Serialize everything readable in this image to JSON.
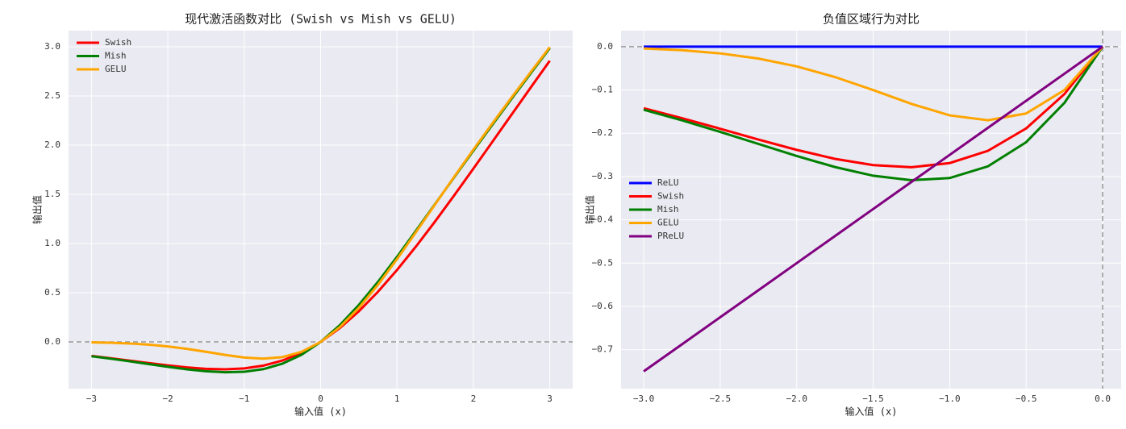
{
  "chart_data": [
    {
      "type": "line",
      "title": "现代激活函数对比 (Swish vs Mish vs GELU)",
      "xlabel": "输入值 (x)",
      "ylabel": "输出值",
      "x": [
        -3,
        -2.75,
        -2.5,
        -2.25,
        -2,
        -1.75,
        -1.5,
        -1.25,
        -1,
        -0.75,
        -0.5,
        -0.25,
        0,
        0.25,
        0.5,
        0.75,
        1,
        1.25,
        1.5,
        1.75,
        2,
        2.25,
        2.5,
        2.75,
        3
      ],
      "series": [
        {
          "name": "Swish",
          "color": "#ff0000",
          "values": [
            -0.1423,
            -0.1652,
            -0.1896,
            -0.2145,
            -0.2384,
            -0.2591,
            -0.2736,
            -0.2784,
            -0.2689,
            -0.2406,
            -0.1888,
            -0.1095,
            0,
            0.1405,
            0.3112,
            0.5094,
            0.7311,
            0.9716,
            1.2264,
            1.4909,
            1.7616,
            2.0355,
            2.3104,
            2.5848,
            2.8577
          ]
        },
        {
          "name": "Mish",
          "color": "#008000",
          "values": [
            -0.1457,
            -0.1702,
            -0.1968,
            -0.2247,
            -0.2525,
            -0.278,
            -0.2981,
            -0.3084,
            -0.3034,
            -0.2765,
            -0.2207,
            -0.1299,
            0,
            0.1696,
            0.3753,
            0.61,
            0.8651,
            1.1319,
            1.4034,
            1.6749,
            1.944,
            2.2095,
            2.4714,
            2.7302,
            2.9865
          ]
        },
        {
          "name": "GELU",
          "color": "#ffa500",
          "values": [
            -0.0041,
            -0.0082,
            -0.0155,
            -0.0275,
            -0.0455,
            -0.0701,
            -0.1002,
            -0.1321,
            -0.1587,
            -0.17,
            -0.1543,
            -0.1003,
            0,
            0.1497,
            0.3457,
            0.58,
            0.8413,
            1.1179,
            1.3998,
            1.6799,
            1.9545,
            2.2225,
            2.4845,
            2.7418,
            2.996
          ]
        }
      ],
      "xlim": [
        -3.3,
        3.3
      ],
      "ylim": [
        -0.475,
        3.164
      ],
      "xticks": [
        {
          "value": -3,
          "label": "−3"
        },
        {
          "value": -2,
          "label": "−2"
        },
        {
          "value": -1,
          "label": "−1"
        },
        0,
        1,
        2,
        3
      ],
      "yticks": [
        {
          "value": 0,
          "label": "0.0"
        },
        0.5,
        {
          "value": 1,
          "label": "1.0"
        },
        1.5,
        {
          "value": 2,
          "label": "2.0"
        },
        2.5,
        {
          "value": 3,
          "label": "3.0"
        }
      ],
      "hlines": [
        0
      ],
      "vlines": [],
      "grid": true,
      "legend": "upper left"
    },
    {
      "type": "line",
      "title": "负值区域行为对比",
      "xlabel": "输入值 (x)",
      "ylabel": "输出值",
      "x": [
        -3,
        -2.75,
        -2.5,
        -2.25,
        -2,
        -1.75,
        -1.5,
        -1.25,
        -1,
        -0.75,
        -0.5,
        -0.25,
        0
      ],
      "series": [
        {
          "name": "ReLU",
          "color": "#0000ff",
          "values": [
            0,
            0,
            0,
            0,
            0,
            0,
            0,
            0,
            0,
            0,
            0,
            0,
            0
          ]
        },
        {
          "name": "Swish",
          "color": "#ff0000",
          "values": [
            -0.1423,
            -0.1652,
            -0.1896,
            -0.2145,
            -0.2384,
            -0.2591,
            -0.2736,
            -0.2784,
            -0.2689,
            -0.2406,
            -0.1888,
            -0.1095,
            0
          ]
        },
        {
          "name": "Mish",
          "color": "#008000",
          "values": [
            -0.1457,
            -0.1702,
            -0.1968,
            -0.2247,
            -0.2525,
            -0.278,
            -0.2981,
            -0.3084,
            -0.3034,
            -0.2765,
            -0.2207,
            -0.1299,
            0
          ]
        },
        {
          "name": "GELU",
          "color": "#ffa500",
          "values": [
            -0.0041,
            -0.0082,
            -0.0155,
            -0.0275,
            -0.0455,
            -0.0701,
            -0.1002,
            -0.1321,
            -0.1587,
            -0.17,
            -0.1543,
            -0.1003,
            0
          ]
        },
        {
          "name": "PReLU",
          "color": "#800080",
          "values": [
            -0.75,
            -0.6875,
            -0.625,
            -0.5625,
            -0.5,
            -0.4375,
            -0.375,
            -0.3125,
            -0.25,
            -0.1875,
            -0.125,
            -0.0625,
            0
          ]
        }
      ],
      "xlim": [
        -3.148,
        0.121
      ],
      "ylim": [
        -0.79,
        0.037
      ],
      "xticks": [
        {
          "value": -3,
          "label": "−3.0"
        },
        {
          "value": -2.5,
          "label": "−2.5"
        },
        {
          "value": -2,
          "label": "−2.0"
        },
        {
          "value": -1.5,
          "label": "−1.5"
        },
        {
          "value": -1,
          "label": "−1.0"
        },
        {
          "value": -0.5,
          "label": "−0.5"
        },
        {
          "value": 0,
          "label": "0.0"
        }
      ],
      "yticks": [
        {
          "value": 0,
          "label": "0.0"
        },
        {
          "value": -0.1,
          "label": "−0.1"
        },
        {
          "value": -0.2,
          "label": "−0.2"
        },
        {
          "value": -0.3,
          "label": "−0.3"
        },
        {
          "value": -0.4,
          "label": "−0.4"
        },
        {
          "value": -0.5,
          "label": "−0.5"
        },
        {
          "value": -0.6,
          "label": "−0.6"
        },
        {
          "value": -0.7,
          "label": "−0.7"
        }
      ],
      "hlines": [
        0
      ],
      "vlines": [
        0
      ],
      "grid": true,
      "legend": "center left"
    }
  ]
}
